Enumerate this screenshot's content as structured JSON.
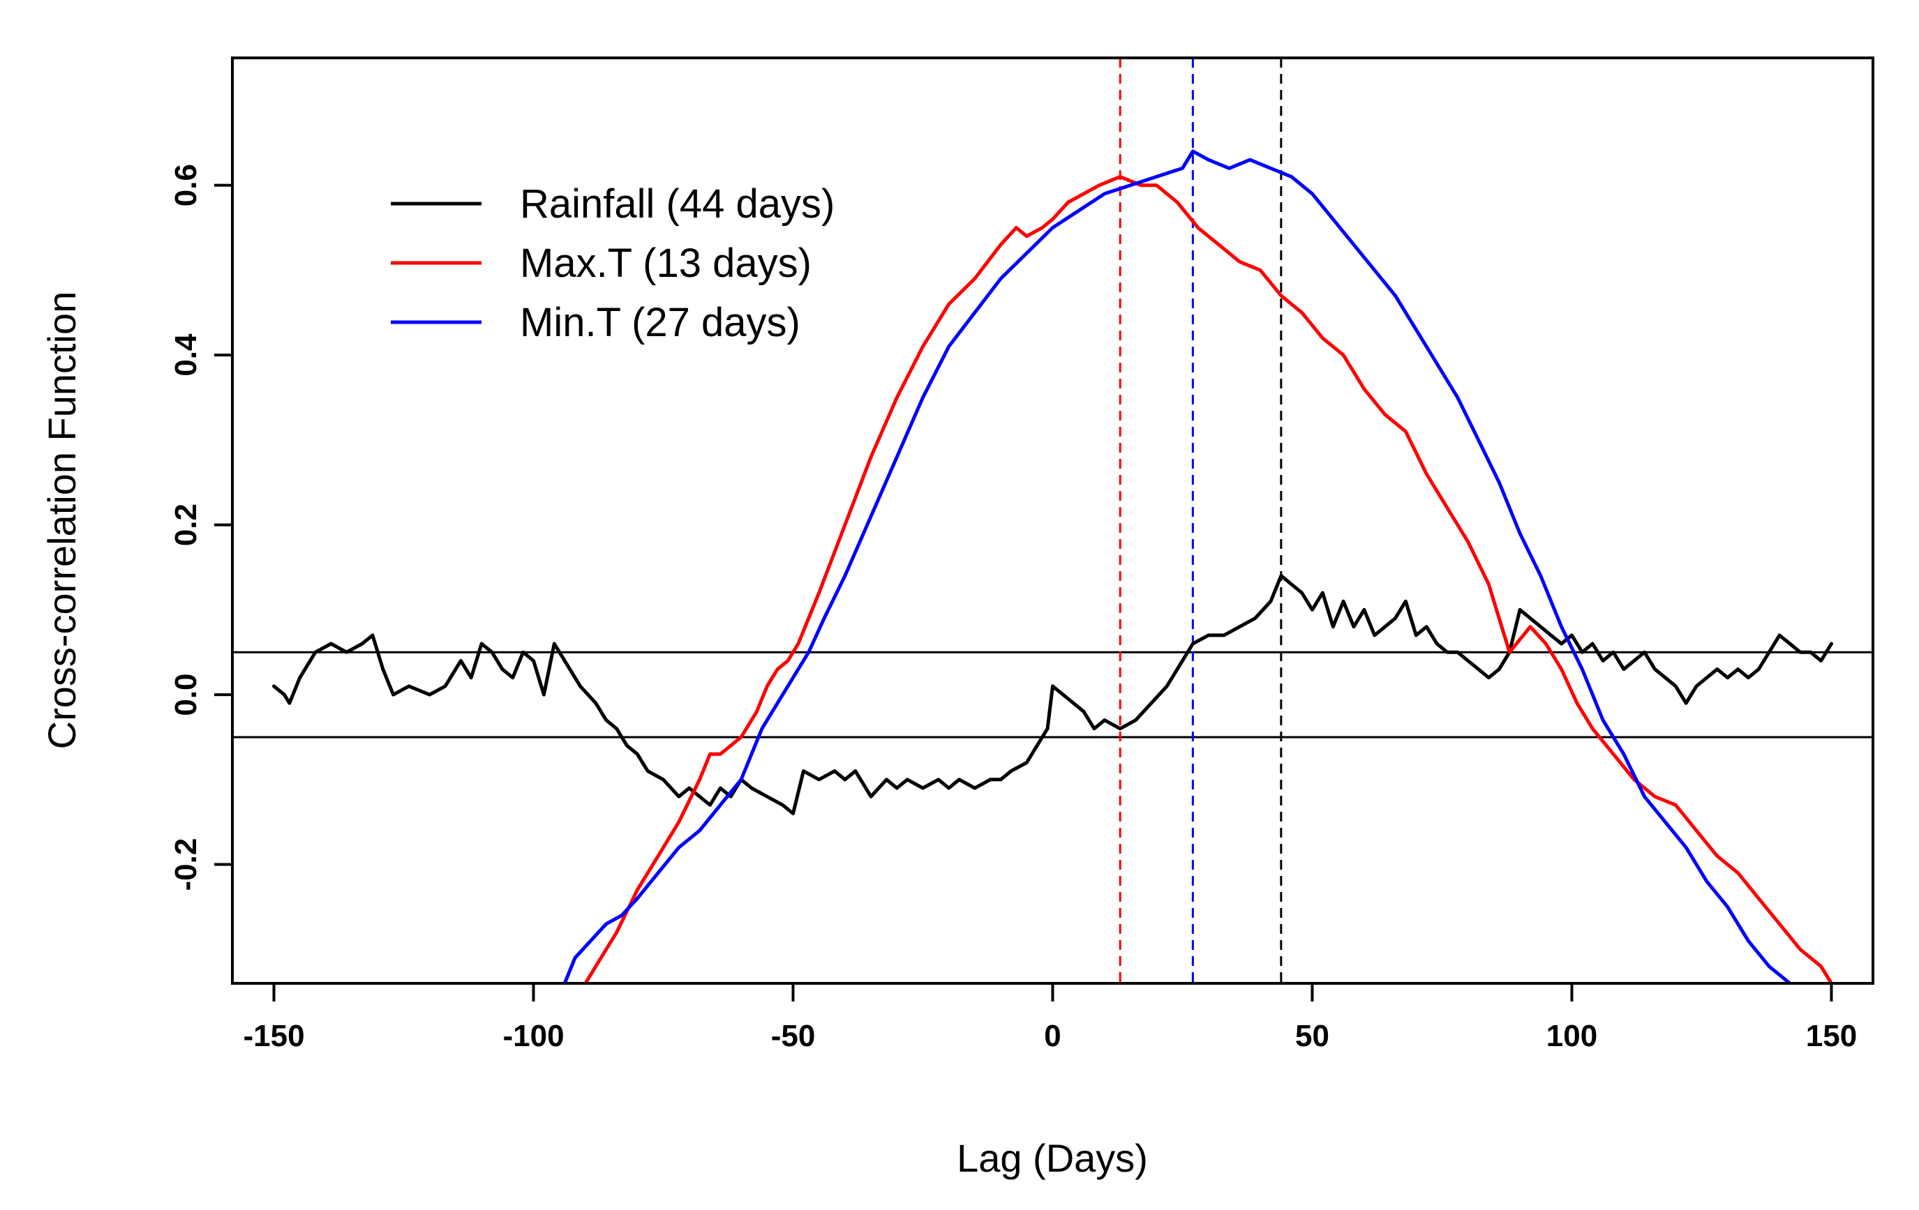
{
  "chart_data": {
    "type": "line",
    "xlabel": "Lag (Days)",
    "ylabel": "Cross-correlation Function",
    "xlim": [
      -158,
      158
    ],
    "ylim": [
      -0.34,
      0.75
    ],
    "x_ticks": [
      -150,
      -100,
      -50,
      0,
      50,
      100,
      150
    ],
    "x_tick_labels": [
      "-150",
      "-100",
      "-50",
      "0",
      "50",
      "100",
      "150"
    ],
    "y_ticks": [
      -0.2,
      0.0,
      0.2,
      0.4,
      0.6
    ],
    "y_tick_labels": [
      "-0.2",
      "0.0",
      "0.2",
      "0.4",
      "0.6"
    ],
    "legend_position": "top-left",
    "confidence_bounds": [
      0.05,
      -0.05
    ],
    "series": [
      {
        "name": "Rainfall (44 days)",
        "color": "#000000",
        "peak_lag": 44,
        "x": [
          -150,
          -148,
          -147,
          -145,
          -142,
          -139,
          -136,
          -133,
          -131,
          -129,
          -127,
          -124,
          -120,
          -117,
          -114,
          -112,
          -110,
          -108,
          -106,
          -104,
          -102,
          -100,
          -98,
          -96,
          -94,
          -91,
          -88,
          -86,
          -84,
          -82,
          -80,
          -78,
          -75,
          -72,
          -70,
          -68,
          -66,
          -64,
          -62,
          -60,
          -58,
          -55,
          -52,
          -50,
          -48,
          -45,
          -42,
          -40,
          -38,
          -35,
          -32,
          -30,
          -28,
          -25,
          -22,
          -20,
          -18,
          -15,
          -12,
          -10,
          -8,
          -5,
          -3,
          -1,
          0,
          2,
          4,
          6,
          8,
          10,
          13,
          16,
          19,
          22,
          25,
          27,
          30,
          33,
          36,
          39,
          42,
          44,
          46,
          48,
          50,
          52,
          54,
          56,
          58,
          60,
          62,
          64,
          66,
          68,
          70,
          72,
          74,
          76,
          78,
          80,
          82,
          84,
          86,
          88,
          90,
          92,
          94,
          96,
          98,
          100,
          102,
          104,
          106,
          108,
          110,
          112,
          114,
          116,
          118,
          120,
          122,
          124,
          126,
          128,
          130,
          132,
          134,
          136,
          138,
          140,
          142,
          144,
          146,
          148,
          150
        ],
        "values": [
          0.01,
          0.0,
          -0.01,
          0.02,
          0.05,
          0.06,
          0.05,
          0.06,
          0.07,
          0.03,
          0.0,
          0.01,
          0.0,
          0.01,
          0.04,
          0.02,
          0.06,
          0.05,
          0.03,
          0.02,
          0.05,
          0.04,
          0.0,
          0.06,
          0.04,
          0.01,
          -0.01,
          -0.03,
          -0.04,
          -0.06,
          -0.07,
          -0.09,
          -0.1,
          -0.12,
          -0.11,
          -0.12,
          -0.13,
          -0.11,
          -0.12,
          -0.1,
          -0.11,
          -0.12,
          -0.13,
          -0.14,
          -0.09,
          -0.1,
          -0.09,
          -0.1,
          -0.09,
          -0.12,
          -0.1,
          -0.11,
          -0.1,
          -0.11,
          -0.1,
          -0.11,
          -0.1,
          -0.11,
          -0.1,
          -0.1,
          -0.09,
          -0.08,
          -0.06,
          -0.04,
          0.01,
          0.0,
          -0.01,
          -0.02,
          -0.04,
          -0.03,
          -0.04,
          -0.03,
          -0.01,
          0.01,
          0.04,
          0.06,
          0.07,
          0.07,
          0.08,
          0.09,
          0.11,
          0.14,
          0.13,
          0.12,
          0.1,
          0.12,
          0.08,
          0.11,
          0.08,
          0.1,
          0.07,
          0.08,
          0.09,
          0.11,
          0.07,
          0.08,
          0.06,
          0.05,
          0.05,
          0.04,
          0.03,
          0.02,
          0.03,
          0.05,
          0.1,
          0.09,
          0.08,
          0.07,
          0.06,
          0.07,
          0.05,
          0.06,
          0.04,
          0.05,
          0.03,
          0.04,
          0.05,
          0.03,
          0.02,
          0.01,
          -0.01,
          0.01,
          0.02,
          0.03,
          0.02,
          0.03,
          0.02,
          0.03,
          0.05,
          0.07,
          0.06,
          0.05,
          0.05,
          0.04,
          0.06
        ]
      },
      {
        "name": "Max.T (13 days)",
        "color": "#ff0000",
        "peak_lag": 13,
        "x": [
          -90,
          -87,
          -84,
          -80,
          -76,
          -72,
          -68,
          -66,
          -64,
          -60,
          -57,
          -55,
          -53,
          -51,
          -49,
          -45,
          -40,
          -35,
          -30,
          -25,
          -20,
          -15,
          -10,
          -7,
          -5,
          -2,
          0,
          3,
          6,
          9,
          13,
          17,
          20,
          24,
          28,
          32,
          36,
          40,
          44,
          48,
          52,
          56,
          60,
          64,
          68,
          72,
          76,
          80,
          84,
          88,
          92,
          95,
          98,
          101,
          104,
          108,
          112,
          116,
          120,
          124,
          128,
          132,
          136,
          140,
          144,
          148,
          150
        ],
        "values": [
          -0.34,
          -0.31,
          -0.28,
          -0.23,
          -0.19,
          -0.15,
          -0.1,
          -0.07,
          -0.07,
          -0.05,
          -0.02,
          0.01,
          0.03,
          0.04,
          0.06,
          0.12,
          0.2,
          0.28,
          0.35,
          0.41,
          0.46,
          0.49,
          0.53,
          0.55,
          0.54,
          0.55,
          0.56,
          0.58,
          0.59,
          0.6,
          0.61,
          0.6,
          0.6,
          0.58,
          0.55,
          0.53,
          0.51,
          0.5,
          0.47,
          0.45,
          0.42,
          0.4,
          0.36,
          0.33,
          0.31,
          0.26,
          0.22,
          0.18,
          0.13,
          0.05,
          0.08,
          0.06,
          0.03,
          -0.01,
          -0.04,
          -0.07,
          -0.1,
          -0.12,
          -0.13,
          -0.16,
          -0.19,
          -0.21,
          -0.24,
          -0.27,
          -0.3,
          -0.32,
          -0.34
        ]
      },
      {
        "name": "Min.T (27 days)",
        "color": "#0000ff",
        "peak_lag": 27,
        "x": [
          -94,
          -92,
          -89,
          -86,
          -83,
          -80,
          -76,
          -72,
          -68,
          -64,
          -60,
          -58,
          -56,
          -53,
          -50,
          -47,
          -44,
          -40,
          -35,
          -30,
          -25,
          -20,
          -15,
          -10,
          -5,
          0,
          5,
          10,
          15,
          20,
          25,
          27,
          30,
          34,
          38,
          42,
          46,
          50,
          54,
          58,
          62,
          66,
          70,
          74,
          78,
          82,
          86,
          90,
          94,
          98,
          102,
          106,
          110,
          114,
          118,
          122,
          126,
          130,
          134,
          138,
          142
        ],
        "values": [
          -0.34,
          -0.31,
          -0.29,
          -0.27,
          -0.26,
          -0.24,
          -0.21,
          -0.18,
          -0.16,
          -0.13,
          -0.1,
          -0.07,
          -0.04,
          -0.01,
          0.02,
          0.05,
          0.09,
          0.14,
          0.21,
          0.28,
          0.35,
          0.41,
          0.45,
          0.49,
          0.52,
          0.55,
          0.57,
          0.59,
          0.6,
          0.61,
          0.62,
          0.64,
          0.63,
          0.62,
          0.63,
          0.62,
          0.61,
          0.59,
          0.56,
          0.53,
          0.5,
          0.47,
          0.43,
          0.39,
          0.35,
          0.3,
          0.25,
          0.19,
          0.14,
          0.08,
          0.03,
          -0.03,
          -0.07,
          -0.12,
          -0.15,
          -0.18,
          -0.22,
          -0.25,
          -0.29,
          -0.32,
          -0.34
        ]
      }
    ]
  }
}
